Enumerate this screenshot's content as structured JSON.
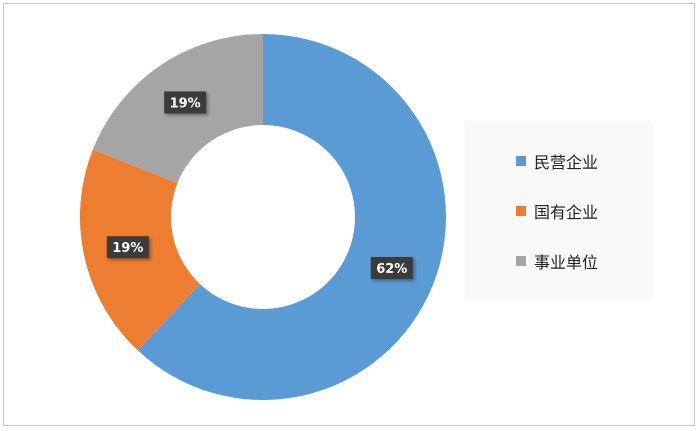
{
  "chart_data": {
    "type": "pie",
    "style": "donut",
    "title": "",
    "categories": [
      "民营企业",
      "国有企业",
      "事业单位"
    ],
    "values": [
      62,
      19,
      19
    ],
    "data_labels": [
      "62%",
      "19%",
      "19%"
    ],
    "colors": [
      "#5b9bd5",
      "#ed7d31",
      "#a5a5a5"
    ],
    "start_angle": "top, clockwise",
    "legend_position": "right"
  }
}
